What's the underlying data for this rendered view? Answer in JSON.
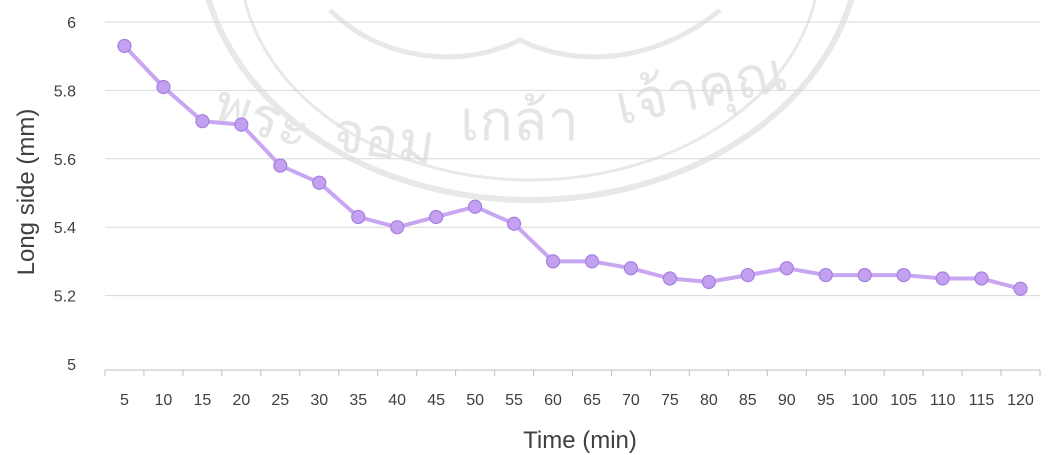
{
  "chart_data": {
    "type": "line",
    "title": "",
    "xlabel": "Time (min)",
    "ylabel": "Long side (mm)",
    "ylim": [
      5,
      6
    ],
    "yticks": [
      "5",
      "5.2",
      "5.4",
      "5.6",
      "5.8",
      "6"
    ],
    "categories": [
      "5",
      "10",
      "15",
      "20",
      "25",
      "30",
      "35",
      "40",
      "45",
      "50",
      "55",
      "60",
      "65",
      "70",
      "75",
      "80",
      "85",
      "90",
      "95",
      "100",
      "105",
      "110",
      "115",
      "120"
    ],
    "series": [
      {
        "values": [
          5.93,
          5.81,
          5.71,
          5.7,
          5.58,
          5.53,
          5.43,
          5.4,
          5.43,
          5.46,
          5.41,
          5.3,
          5.3,
          5.28,
          5.25,
          5.24,
          5.26,
          5.28,
          5.26,
          5.26,
          5.26,
          5.25,
          5.25,
          5.22
        ],
        "color": "#c9a6f2",
        "marker_color": "#c4a0f0"
      }
    ],
    "grid": true,
    "legend": "none"
  },
  "watermark": {
    "text": "พระจอมเกล้าเจ้าคุณทหาร",
    "color": "#e3e3e3"
  }
}
